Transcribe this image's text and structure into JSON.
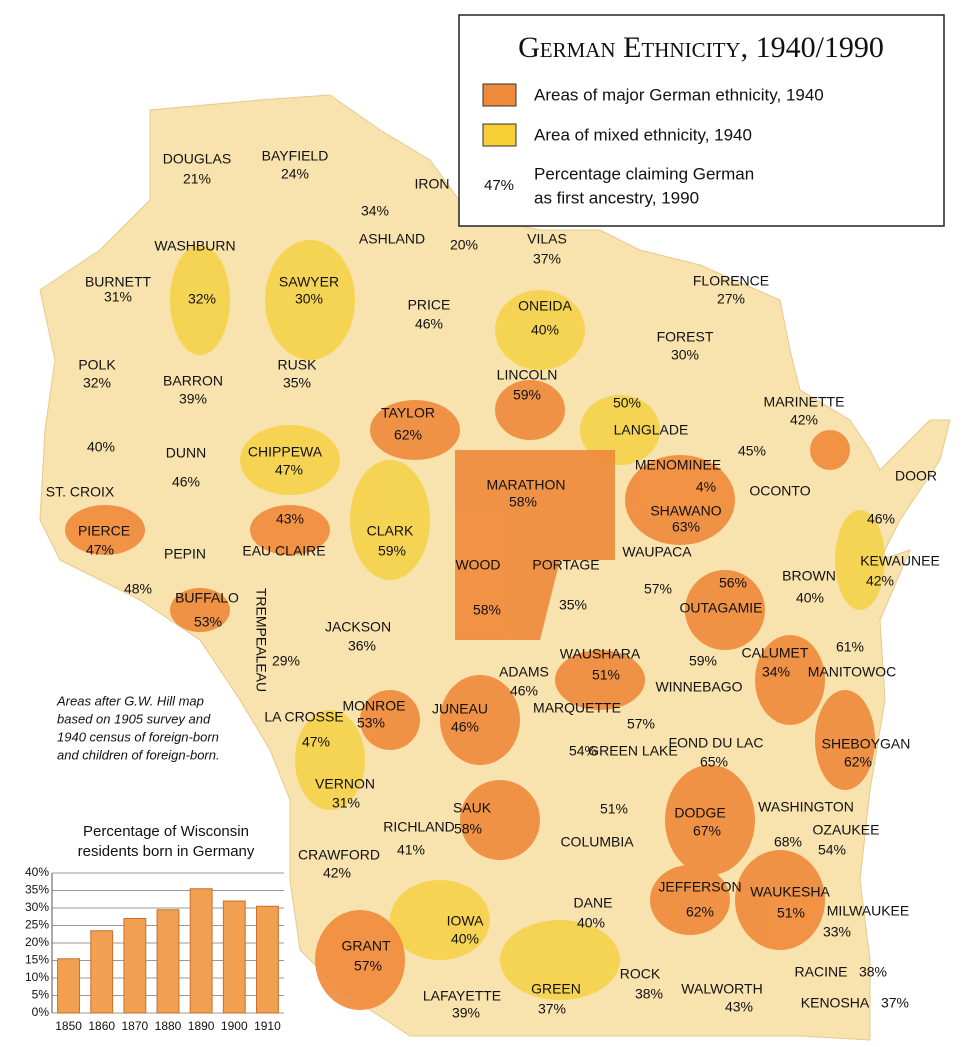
{
  "map": {
    "title": "German Ethnicity, 1940/1990",
    "legend": {
      "items": [
        {
          "label": "Areas of major German ethnicity, 1940",
          "color": "#ef8a3a"
        },
        {
          "label": "Area of mixed ethnicity, 1940",
          "color": "#f6cf35"
        },
        {
          "symbol": "47%",
          "lines": [
            "Percentage claiming German",
            "as first ancestry, 1990"
          ]
        }
      ]
    },
    "note": [
      "Areas after G.W. Hill map",
      "based on 1905 survey and",
      "1940 census of foreign-born",
      "and children of foreign-born."
    ],
    "counties": [
      {
        "name": "DOUGLAS",
        "pct": "21%"
      },
      {
        "name": "BAYFIELD",
        "pct": "24%"
      },
      {
        "name": "IRON",
        "pct": "20%"
      },
      {
        "name": "ASHLAND",
        "pct": "34%"
      },
      {
        "name": "VILAS",
        "pct": "37%"
      },
      {
        "name": "WASHBURN",
        "pct": "32%"
      },
      {
        "name": "BURNETT",
        "pct": "31%"
      },
      {
        "name": "SAWYER",
        "pct": "30%"
      },
      {
        "name": "PRICE",
        "pct": "46%"
      },
      {
        "name": "ONEIDA",
        "pct": "40%"
      },
      {
        "name": "FLORENCE",
        "pct": "27%"
      },
      {
        "name": "FOREST",
        "pct": "30%"
      },
      {
        "name": "POLK",
        "pct": "32%"
      },
      {
        "name": "BARRON",
        "pct": "39%"
      },
      {
        "name": "RUSK",
        "pct": "35%"
      },
      {
        "name": "LINCOLN",
        "pct": "59%"
      },
      {
        "name": "TAYLOR",
        "pct": "62%"
      },
      {
        "name": "LANGLADE",
        "pct": "50%"
      },
      {
        "name": "MARINETTE",
        "pct": "42%"
      },
      {
        "name": "CHIPPEWA",
        "pct": "47%"
      },
      {
        "name": "DUNN",
        "pct": "46%"
      },
      {
        "name": "ST. CROIX",
        "pct": "40%"
      },
      {
        "name": "MENOMINEE",
        "pct": "4%"
      },
      {
        "name": "OCONTO",
        "pct": "45%"
      },
      {
        "name": "DOOR",
        "pct": "46%"
      },
      {
        "name": "MARATHON",
        "pct": "58%"
      },
      {
        "name": "SHAWANO",
        "pct": "63%"
      },
      {
        "name": "PIERCE",
        "pct": "47%"
      },
      {
        "name": "PEPIN",
        "pct": "48%"
      },
      {
        "name": "EAU CLAIRE",
        "pct": "43%"
      },
      {
        "name": "CLARK",
        "pct": "59%"
      },
      {
        "name": "WOOD",
        "pct": "58%"
      },
      {
        "name": "PORTAGE",
        "pct": "35%"
      },
      {
        "name": "WAUPACA",
        "pct": "57%"
      },
      {
        "name": "OUTAGAMIE",
        "pct": "56%"
      },
      {
        "name": "BROWN",
        "pct": "40%"
      },
      {
        "name": "KEWAUNEE",
        "pct": "42%"
      },
      {
        "name": "BUFFALO",
        "pct": "53%"
      },
      {
        "name": "TREMPEALEAU",
        "pct": "29%"
      },
      {
        "name": "JACKSON",
        "pct": "36%"
      },
      {
        "name": "ADAMS",
        "pct": "46%"
      },
      {
        "name": "WAUSHARA",
        "pct": "51%"
      },
      {
        "name": "WINNEBAGO",
        "pct": "59%"
      },
      {
        "name": "CALUMET",
        "pct": "34%"
      },
      {
        "name": "MANITOWOC",
        "pct": "61%"
      },
      {
        "name": "MONROE",
        "pct": "53%"
      },
      {
        "name": "JUNEAU",
        "pct": "46%"
      },
      {
        "name": "LA CROSSE",
        "pct": "47%"
      },
      {
        "name": "MARQUETTE",
        "pct": "57%"
      },
      {
        "name": "GREEN LAKE",
        "pct": "54%"
      },
      {
        "name": "FOND DU LAC",
        "pct": "65%"
      },
      {
        "name": "SHEBOYGAN",
        "pct": "62%"
      },
      {
        "name": "VERNON",
        "pct": "31%"
      },
      {
        "name": "SAUK",
        "pct": "58%"
      },
      {
        "name": "COLUMBIA",
        "pct": "51%"
      },
      {
        "name": "DODGE",
        "pct": "67%"
      },
      {
        "name": "WASHINGTON",
        "pct": "68%"
      },
      {
        "name": "OZAUKEE",
        "pct": "54%"
      },
      {
        "name": "RICHLAND",
        "pct": "41%"
      },
      {
        "name": "CRAWFORD",
        "pct": "42%"
      },
      {
        "name": "JEFFERSON",
        "pct": "62%"
      },
      {
        "name": "DANE",
        "pct": "40%"
      },
      {
        "name": "WAUKESHA",
        "pct": "51%"
      },
      {
        "name": "MILWAUKEE",
        "pct": "33%"
      },
      {
        "name": "IOWA",
        "pct": "40%"
      },
      {
        "name": "GRANT",
        "pct": "57%"
      },
      {
        "name": "RACINE",
        "pct": "38%"
      },
      {
        "name": "KENOSHA",
        "pct": "37%"
      },
      {
        "name": "ROCK",
        "pct": "38%"
      },
      {
        "name": "WALWORTH",
        "pct": "43%"
      },
      {
        "name": "GREEN",
        "pct": "37%"
      },
      {
        "name": "LAFAYETTE",
        "pct": "39%"
      }
    ]
  },
  "chart_data": {
    "type": "bar",
    "title": [
      "Percentage of Wisconsin",
      "residents born in Germany"
    ],
    "categories": [
      "1850",
      "1860",
      "1870",
      "1880",
      "1890",
      "1900",
      "1910"
    ],
    "values": [
      15.5,
      23.5,
      27,
      29.5,
      35.5,
      32,
      30.5
    ],
    "color": "#f0a050",
    "ylim": [
      0,
      40
    ],
    "yticks": [
      {
        "value": 0,
        "label": "0%"
      },
      {
        "value": 5,
        "label": "5%"
      },
      {
        "value": 10,
        "label": "10%"
      },
      {
        "value": 15,
        "label": "15%"
      },
      {
        "value": 20,
        "label": "20%"
      },
      {
        "value": 25,
        "label": "25%"
      },
      {
        "value": 30,
        "label": "30%"
      },
      {
        "value": 35,
        "label": "35%"
      },
      {
        "value": 40,
        "label": "40%"
      }
    ],
    "grid": true
  }
}
